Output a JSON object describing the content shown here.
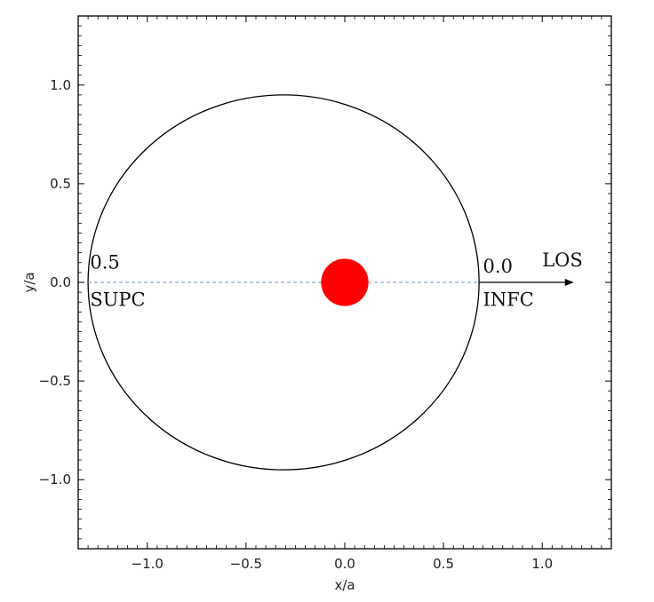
{
  "chart_data": {
    "type": "scatter",
    "title": "",
    "xlabel": "x/a",
    "ylabel": "y/a",
    "xlim": [
      -1.35,
      1.35
    ],
    "ylim": [
      -1.35,
      1.35
    ],
    "x_ticks": [
      -1.0,
      -0.5,
      0.0,
      0.5,
      1.0
    ],
    "y_ticks": [
      -1.0,
      -0.5,
      0.0,
      0.5,
      1.0
    ],
    "x_tick_labels": [
      "−1.0",
      "−0.5",
      "0.0",
      "0.5",
      "1.0"
    ],
    "y_tick_labels": [
      "−1.0",
      "−0.5",
      "0.0",
      "0.5",
      "1.0"
    ],
    "grid": false,
    "orbit": {
      "center_x": -0.31,
      "center_y": 0.0,
      "radius_x": 0.99,
      "radius_y": 0.95
    },
    "star": {
      "x": 0.0,
      "y": 0.0,
      "radius": 0.12,
      "color": "#ff0000"
    },
    "line_of_sight": {
      "x_start": -1.3,
      "x_end": 0.68,
      "y": 0.0,
      "color": "#6b8fc0"
    },
    "arrow": {
      "x_start": 0.68,
      "x_end": 1.16,
      "y": 0.0
    },
    "annotations": [
      {
        "text": "0.5",
        "x": -1.29,
        "y": 0.07
      },
      {
        "text": "SUPC",
        "x": -1.29,
        "y": -0.12
      },
      {
        "text": "0.0",
        "x": 0.7,
        "y": 0.05
      },
      {
        "text": "INFC",
        "x": 0.7,
        "y": -0.12
      },
      {
        "text": "LOS",
        "x": 1.0,
        "y": 0.08
      }
    ]
  }
}
